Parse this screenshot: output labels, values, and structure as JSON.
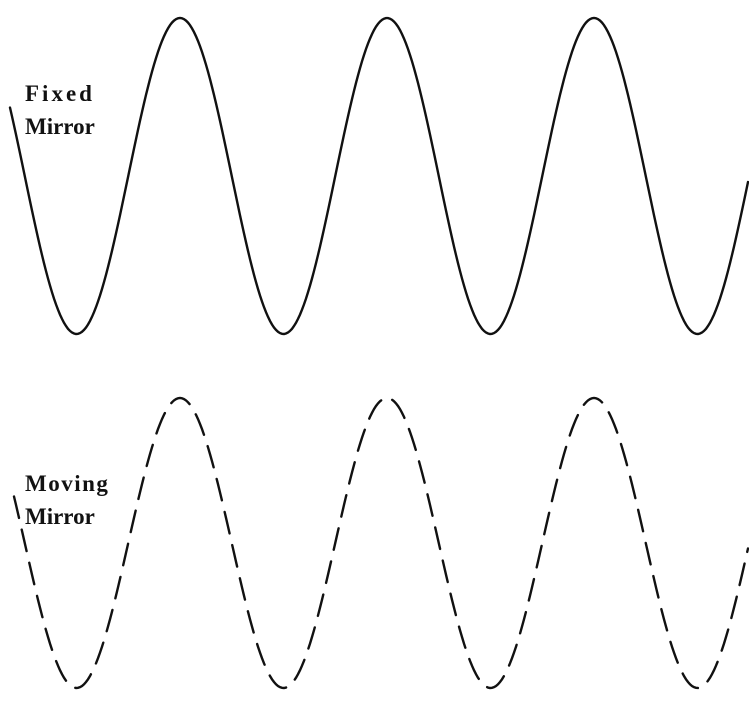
{
  "waves": [
    {
      "label": [
        "Fixed",
        "Mirror"
      ]
    },
    {
      "label": [
        "Moving",
        "Mirror"
      ]
    }
  ]
}
